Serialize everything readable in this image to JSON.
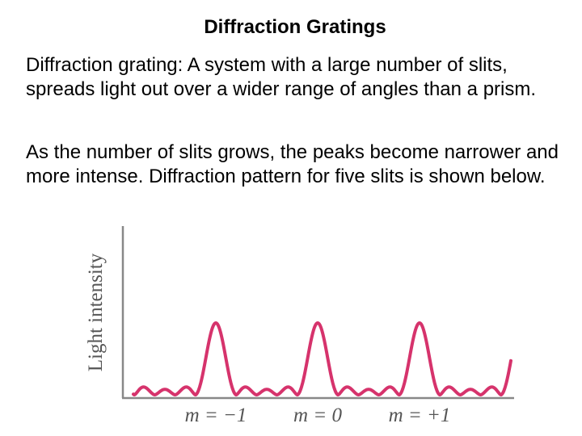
{
  "slide": {
    "title": "Diffraction Gratings",
    "paragraph_1": "Diffraction grating: A system with a large number of slits, spreads light out over a wider range of angles than a prism.",
    "paragraph_2": "As the number of slits grows, the peaks become narrower and more intense. Diffraction pattern for five slits is shown below."
  },
  "chart_data": {
    "type": "line",
    "ylabel": "Light intensity",
    "xlabel": "",
    "tick_labels": [
      "m = −1",
      "m = 0",
      "m = +1"
    ],
    "principal_maxima_m": [
      -1,
      0,
      1
    ],
    "number_of_slits": 5,
    "secondary_maxima_between_peaks": 3,
    "curve_color": "#d6336c",
    "axis_color": "#888888",
    "grid": false
  }
}
